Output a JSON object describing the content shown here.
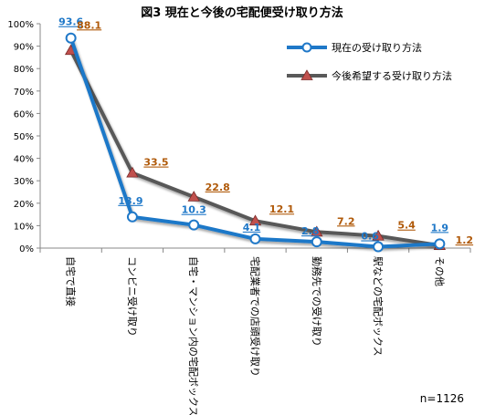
{
  "chart_data": {
    "type": "line",
    "title": "図3 現在と今後の宅配便受け取り方法",
    "categories": [
      "自宅で直接",
      "コンビニ受け取り",
      "自宅・マンション内の宅配ボックス",
      "宅配業者での店頭受け取り",
      "勤務先での受け取り",
      "駅などの宅配ボックス",
      "その他"
    ],
    "y_ticks": [
      "0%",
      "10%",
      "20%",
      "30%",
      "40%",
      "50%",
      "60%",
      "70%",
      "80%",
      "90%",
      "100%"
    ],
    "ylim": [
      0,
      100
    ],
    "grid": false,
    "legend_position": "top-right",
    "series": [
      {
        "name": "現在の受け取り方法",
        "values": [
          93.6,
          13.9,
          10.3,
          4.1,
          2.8,
          0.6,
          1.9
        ],
        "labels": [
          "93.6",
          "13.9",
          "10.3",
          "4.1",
          "2.8",
          "0.6",
          "1.9"
        ],
        "color": "#1f78c8",
        "label_color": "#1f78c8",
        "marker": "circle"
      },
      {
        "name": "今後希望する受け取り方法",
        "values": [
          88.1,
          33.5,
          22.8,
          12.1,
          7.2,
          5.4,
          1.2
        ],
        "labels": [
          "88.1",
          "33.5",
          "22.8",
          "12.1",
          "7.2",
          "5.4",
          "1.2"
        ],
        "color": "#595959",
        "label_color": "#b05a0a",
        "marker": "triangle",
        "marker_color": "#c0504d"
      }
    ]
  },
  "note": "n=1126"
}
